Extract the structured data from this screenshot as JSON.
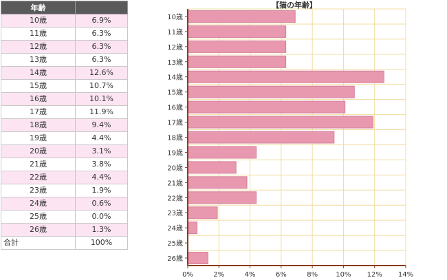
{
  "table": {
    "headers": [
      "年齢",
      ""
    ],
    "rows": [
      {
        "age": "10歳",
        "pct": "6.9%"
      },
      {
        "age": "11歳",
        "pct": "6.3%"
      },
      {
        "age": "12歳",
        "pct": "6.3%"
      },
      {
        "age": "13歳",
        "pct": "6.3%"
      },
      {
        "age": "14歳",
        "pct": "12.6%"
      },
      {
        "age": "15歳",
        "pct": "10.7%"
      },
      {
        "age": "16歳",
        "pct": "10.1%"
      },
      {
        "age": "17歳",
        "pct": "11.9%"
      },
      {
        "age": "18歳",
        "pct": "9.4%"
      },
      {
        "age": "19歳",
        "pct": "4.4%"
      },
      {
        "age": "20歳",
        "pct": "3.1%"
      },
      {
        "age": "21歳",
        "pct": "3.8%"
      },
      {
        "age": "22歳",
        "pct": "4.4%"
      },
      {
        "age": "23歳",
        "pct": "1.9%"
      },
      {
        "age": "24歳",
        "pct": "0.6%"
      },
      {
        "age": "25歳",
        "pct": "0.0%"
      },
      {
        "age": "26歳",
        "pct": "1.3%"
      }
    ],
    "total": {
      "label": "合計",
      "value": "100%"
    }
  },
  "colors": {
    "bar": "#e899b0",
    "bar_stroke": "#d57d98",
    "axis": "#8b3a1a",
    "grid": "#f0dca0",
    "table_pink": "#fde4f2",
    "table_header": "#5a5a5a"
  },
  "chart_data": {
    "type": "bar",
    "orientation": "horizontal",
    "title": "【猫の年齢】",
    "categories": [
      "10歳",
      "11歳",
      "12歳",
      "13歳",
      "14歳",
      "15歳",
      "16歳",
      "17歳",
      "18歳",
      "19歳",
      "20歳",
      "21歳",
      "22歳",
      "23歳",
      "24歳",
      "25歳",
      "26歳"
    ],
    "values": [
      6.9,
      6.3,
      6.3,
      6.3,
      12.6,
      10.7,
      10.1,
      11.9,
      9.4,
      4.4,
      3.1,
      3.8,
      4.4,
      1.9,
      0.6,
      0.0,
      1.3
    ],
    "xlim": [
      0,
      14
    ],
    "xticks": [
      0,
      2,
      4,
      6,
      8,
      10,
      12,
      14
    ],
    "xtick_labels": [
      "0%",
      "2%",
      "4%",
      "6%",
      "8%",
      "10%",
      "12%",
      "14%"
    ],
    "grid": true,
    "xlabel": "",
    "ylabel": ""
  }
}
